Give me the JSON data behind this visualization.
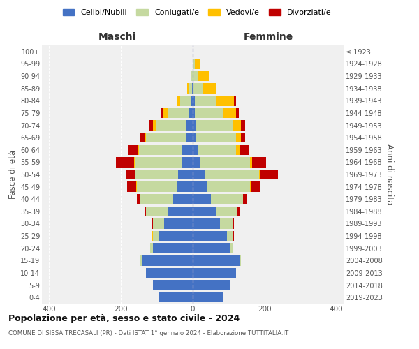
{
  "age_groups": [
    "0-4",
    "5-9",
    "10-14",
    "15-19",
    "20-24",
    "25-29",
    "30-34",
    "35-39",
    "40-44",
    "45-49",
    "50-54",
    "55-59",
    "60-64",
    "65-69",
    "70-74",
    "75-79",
    "80-84",
    "85-89",
    "90-94",
    "95-99",
    "100+"
  ],
  "birth_years": [
    "2019-2023",
    "2014-2018",
    "2009-2013",
    "2004-2008",
    "1999-2003",
    "1994-1998",
    "1989-1993",
    "1984-1988",
    "1979-1983",
    "1974-1978",
    "1969-1973",
    "1964-1968",
    "1959-1963",
    "1954-1958",
    "1949-1953",
    "1944-1948",
    "1939-1943",
    "1934-1938",
    "1929-1933",
    "1924-1928",
    "≤ 1923"
  ],
  "colors": {
    "celibi": "#4472c4",
    "coniugati": "#c5d9a0",
    "vedovi": "#ffc000",
    "divorziati": "#c00000"
  },
  "maschi": {
    "celibi": [
      95,
      110,
      130,
      140,
      110,
      95,
      80,
      70,
      55,
      45,
      40,
      30,
      30,
      20,
      18,
      10,
      5,
      2,
      0,
      0,
      0
    ],
    "coniugati": [
      0,
      0,
      0,
      5,
      8,
      15,
      30,
      60,
      90,
      110,
      120,
      130,
      120,
      110,
      85,
      60,
      30,
      8,
      3,
      0,
      0
    ],
    "vedovi": [
      0,
      0,
      0,
      0,
      0,
      2,
      0,
      0,
      0,
      2,
      2,
      3,
      3,
      5,
      8,
      12,
      8,
      5,
      2,
      0,
      0
    ],
    "divorziati": [
      0,
      0,
      0,
      0,
      0,
      0,
      5,
      5,
      10,
      25,
      25,
      50,
      25,
      10,
      10,
      8,
      0,
      0,
      0,
      0,
      0
    ]
  },
  "femmine": {
    "celibi": [
      85,
      105,
      120,
      130,
      105,
      95,
      75,
      65,
      50,
      40,
      35,
      20,
      15,
      10,
      10,
      5,
      5,
      2,
      0,
      0,
      0
    ],
    "coniugati": [
      0,
      0,
      0,
      5,
      8,
      15,
      35,
      60,
      90,
      120,
      150,
      140,
      105,
      110,
      100,
      80,
      60,
      25,
      15,
      5,
      0
    ],
    "vedovi": [
      0,
      0,
      0,
      0,
      0,
      0,
      0,
      0,
      0,
      2,
      2,
      5,
      10,
      15,
      25,
      35,
      50,
      40,
      30,
      15,
      2
    ],
    "divorziati": [
      0,
      0,
      0,
      0,
      0,
      5,
      5,
      5,
      10,
      25,
      50,
      40,
      25,
      10,
      10,
      8,
      5,
      0,
      0,
      0,
      0
    ]
  },
  "title_main": "Popolazione per età, sesso e stato civile - 2024",
  "title_sub": "COMUNE DI SISSA TRECASALI (PR) - Dati ISTAT 1° gennaio 2024 - Elaborazione TUTTITALIA.IT",
  "xlabel_left": "Maschi",
  "xlabel_right": "Femmine",
  "ylabel_left": "Fasce di età",
  "ylabel_right": "Anni di nascita",
  "legend_labels": [
    "Celibi/Nubili",
    "Coniugati/e",
    "Vedovi/e",
    "Divorziati/e"
  ],
  "xlim": 420,
  "bg_color": "#ffffff",
  "grid_color": "#cccccc"
}
